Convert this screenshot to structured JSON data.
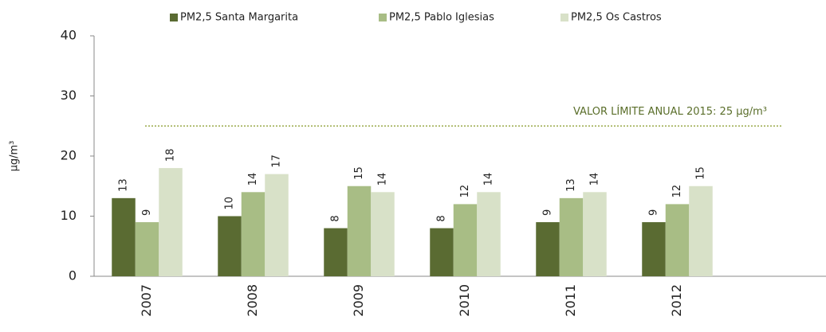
{
  "chart_data": {
    "type": "bar",
    "categories": [
      "2007",
      "2008",
      "2009",
      "2010",
      "2011",
      "2012"
    ],
    "series": [
      {
        "name": "PM2,5 Santa Margarita",
        "color": "#5a6b32",
        "values": [
          13,
          10,
          8,
          8,
          9,
          9
        ]
      },
      {
        "name": "PM2,5 Pablo Iglesias",
        "color": "#a8bd85",
        "values": [
          9,
          14,
          15,
          12,
          13,
          12
        ]
      },
      {
        "name": "PM2,5 Os Castros",
        "color": "#d8e1c8",
        "values": [
          18,
          17,
          14,
          14,
          14,
          15
        ]
      }
    ],
    "y_label": "µg/m³",
    "ylim": [
      0,
      40
    ],
    "yticks": [
      0,
      10,
      20,
      30,
      40
    ],
    "reference_line": {
      "value": 25,
      "label": "VALOR LÍMITE  ANUAL 2015: 25 µg/m³",
      "color": "#9aaa4a"
    },
    "legend": "top"
  }
}
